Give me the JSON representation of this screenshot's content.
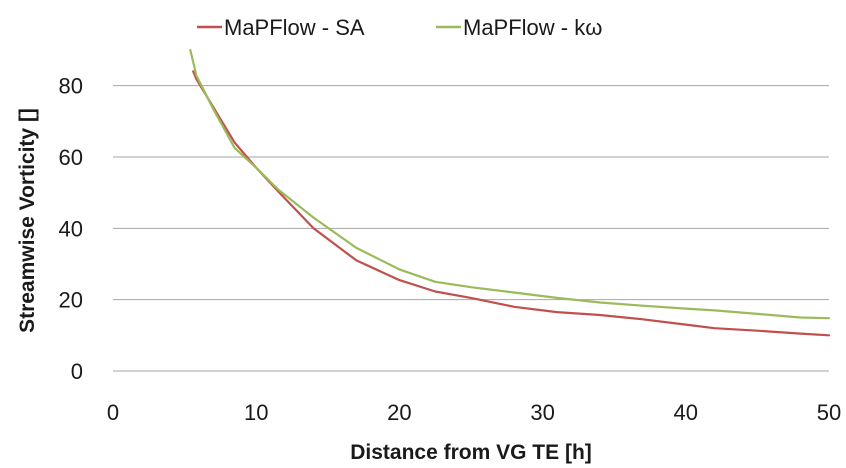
{
  "chart_data": {
    "type": "line",
    "xlabel": "Distance from VG TE [h]",
    "ylabel": "Streamwise Vorticity []",
    "xlim": [
      0,
      50
    ],
    "ylim": [
      0,
      90
    ],
    "xticks": [
      0,
      10,
      20,
      30,
      40,
      50
    ],
    "yticks": [
      0,
      20,
      40,
      60,
      80
    ],
    "grid": "horizontal",
    "legend_position": "top-center",
    "series": [
      {
        "name": "MaPFlow - SA",
        "color": "#c0504d",
        "x": [
          5.6,
          5.8,
          7,
          8.5,
          10,
          11.5,
          14,
          17,
          20,
          22.5,
          25,
          28,
          31,
          34,
          37,
          40,
          42,
          45,
          48,
          50
        ],
        "y": [
          84,
          82,
          74,
          64,
          57,
          50.5,
          40,
          31,
          25.5,
          22.3,
          20.5,
          18,
          16.5,
          15.7,
          14.5,
          13,
          12,
          11.3,
          10.5,
          10
        ]
      },
      {
        "name": "MaPFlow - kω",
        "color": "#9bbb59",
        "x": [
          5.4,
          5.7,
          5.8,
          7,
          8.5,
          10,
          11.5,
          14,
          17,
          20,
          22.5,
          25,
          28,
          31,
          34,
          37,
          40,
          42,
          45,
          48,
          50
        ],
        "y": [
          90,
          85,
          83,
          73.5,
          62.5,
          57,
          51,
          43,
          34.5,
          28.5,
          25,
          23.5,
          22,
          20.5,
          19.2,
          18.3,
          17.5,
          17,
          16,
          15,
          14.8
        ]
      }
    ]
  }
}
